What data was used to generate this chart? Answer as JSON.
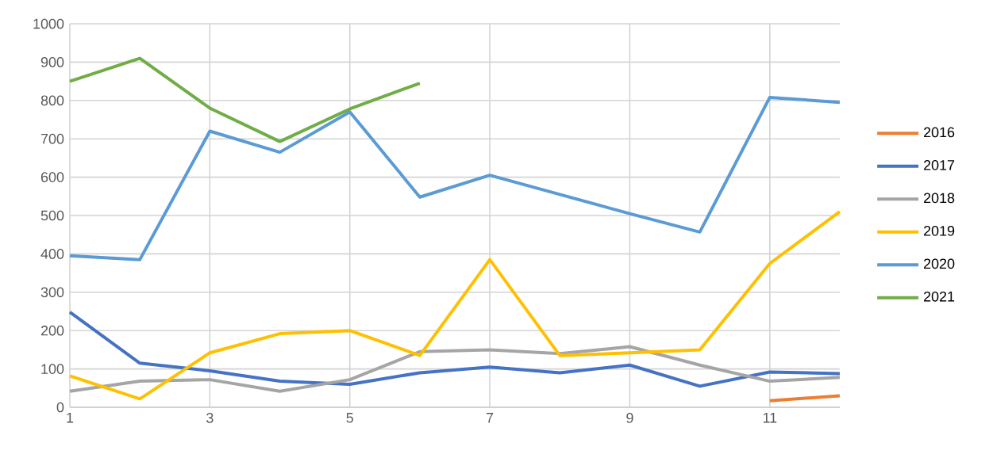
{
  "chart_data": {
    "type": "line",
    "x": [
      1,
      2,
      3,
      4,
      5,
      6,
      7,
      8,
      9,
      10,
      11,
      12
    ],
    "xlim": [
      1,
      12
    ],
    "xticks": [
      1,
      3,
      5,
      7,
      9,
      11
    ],
    "ylim": [
      0,
      1000
    ],
    "yticks": [
      0,
      100,
      200,
      300,
      400,
      500,
      600,
      700,
      800,
      900,
      1000
    ],
    "grid": true,
    "legend": "right",
    "marker": "none",
    "line_style": "solid",
    "series": [
      {
        "name": "2016",
        "color": "#ed7d31",
        "values": [
          null,
          null,
          null,
          null,
          null,
          null,
          null,
          null,
          null,
          null,
          17,
          30
        ]
      },
      {
        "name": "2017",
        "color": "#4472c4",
        "values": [
          248,
          115,
          95,
          68,
          60,
          90,
          105,
          90,
          110,
          55,
          92,
          88
        ]
      },
      {
        "name": "2018",
        "color": "#a5a5a5",
        "values": [
          42,
          68,
          72,
          42,
          72,
          145,
          150,
          140,
          158,
          110,
          68,
          78
        ]
      },
      {
        "name": "2019",
        "color": "#ffc000",
        "values": [
          82,
          22,
          142,
          192,
          200,
          135,
          385,
          135,
          142,
          150,
          375,
          510
        ]
      },
      {
        "name": "2020",
        "color": "#5b9bd5",
        "values": [
          395,
          385,
          720,
          665,
          770,
          548,
          605,
          555,
          505,
          457,
          808,
          795
        ]
      },
      {
        "name": "2021",
        "color": "#70ad47",
        "values": [
          850,
          910,
          780,
          693,
          778,
          845,
          null,
          null,
          null,
          null,
          null,
          null
        ]
      }
    ]
  }
}
